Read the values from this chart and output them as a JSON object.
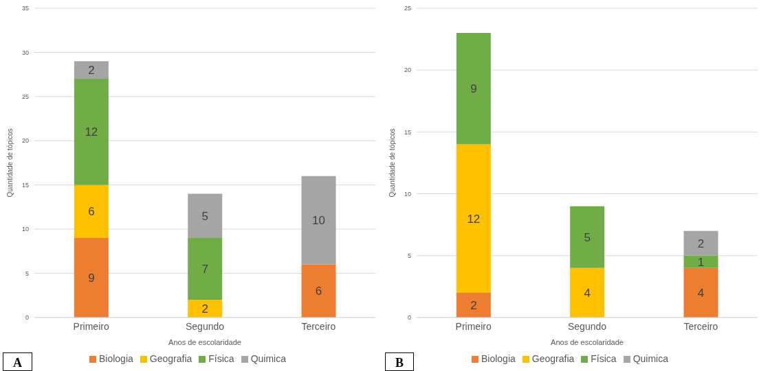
{
  "chart_data": [
    {
      "type": "bar",
      "stacked": true,
      "categories": [
        "Primeiro",
        "Segundo",
        "Terceiro"
      ],
      "xlabel": "Anos de escolaridade",
      "ylabel": "Quantidade de tópicos",
      "ylim": [
        0,
        35
      ],
      "yticks": [
        0,
        5,
        10,
        15,
        20,
        25,
        30,
        35
      ],
      "grid": "y",
      "legend": "bottom",
      "data_labels": true,
      "annotations": [
        "A"
      ],
      "series": [
        {
          "name": "Biologia",
          "color": "#ed7d31",
          "values": [
            9,
            null,
            6
          ]
        },
        {
          "name": "Geografia",
          "color": "#ffc000",
          "values": [
            6,
            2,
            null
          ]
        },
        {
          "name": "Física",
          "color": "#70ad47",
          "values": [
            12,
            7,
            null
          ]
        },
        {
          "name": "Quimica",
          "color": "#a5a5a5",
          "values": [
            2,
            5,
            10
          ]
        }
      ]
    },
    {
      "type": "bar",
      "stacked": true,
      "categories": [
        "Primeiro",
        "Segundo",
        "Terceiro"
      ],
      "xlabel": "Anos de escolaridade",
      "ylabel": "Quantidade de tópicos",
      "ylim": [
        0,
        25
      ],
      "yticks": [
        0,
        5,
        10,
        15,
        20,
        25
      ],
      "grid": "y",
      "legend": "bottom",
      "data_labels": true,
      "annotations": [
        "B"
      ],
      "series": [
        {
          "name": "Biologia",
          "color": "#ed7d31",
          "values": [
            2,
            null,
            4
          ]
        },
        {
          "name": "Geografia",
          "color": "#ffc000",
          "values": [
            12,
            4,
            null
          ]
        },
        {
          "name": "Física",
          "color": "#70ad47",
          "values": [
            9,
            5,
            1
          ]
        },
        {
          "name": "Quimica",
          "color": "#a5a5a5",
          "values": [
            null,
            null,
            2
          ]
        }
      ]
    }
  ]
}
